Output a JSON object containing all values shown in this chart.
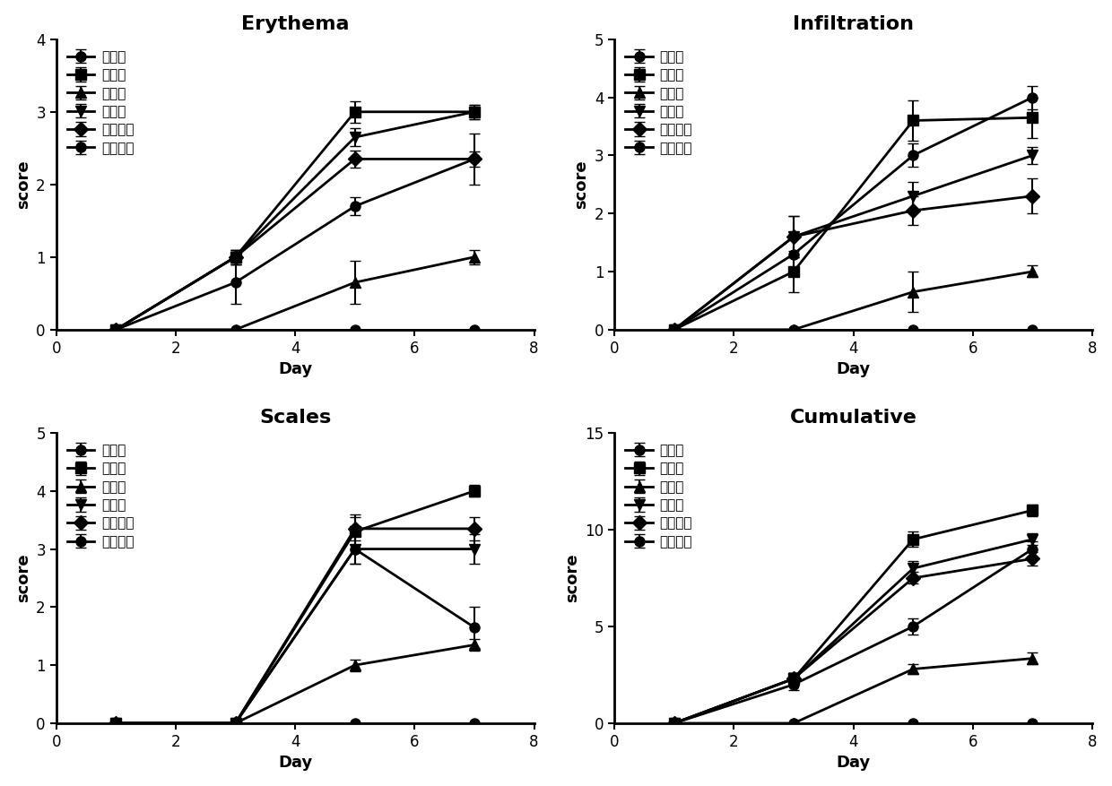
{
  "days": [
    1,
    3,
    5,
    7
  ],
  "groups": [
    "第一组",
    "第二组",
    "第八组",
    "第十组",
    "第十一组",
    "第十二组"
  ],
  "marker_codes": [
    "o",
    "s",
    "^",
    "v",
    "D",
    "o"
  ],
  "erythema": {
    "title": "Erythema",
    "ylabel": "score",
    "xlabel": "Day",
    "ylim": [
      0,
      4
    ],
    "yticks": [
      0,
      1,
      2,
      3,
      4
    ],
    "xlim": [
      0,
      8
    ],
    "xticks": [
      0,
      2,
      4,
      6,
      8
    ],
    "series": [
      {
        "y": [
          0,
          0,
          0,
          0
        ],
        "yerr": [
          0,
          0,
          0,
          0
        ]
      },
      {
        "y": [
          0,
          1.0,
          3.0,
          3.0
        ],
        "yerr": [
          0,
          0.1,
          0.15,
          0.1
        ]
      },
      {
        "y": [
          0,
          0.0,
          0.65,
          1.0
        ],
        "yerr": [
          0,
          0.0,
          0.3,
          0.1
        ]
      },
      {
        "y": [
          0,
          1.0,
          2.65,
          3.0
        ],
        "yerr": [
          0,
          0.1,
          0.12,
          0.1
        ]
      },
      {
        "y": [
          0,
          1.0,
          2.35,
          2.35
        ],
        "yerr": [
          0,
          0.1,
          0.12,
          0.35
        ]
      },
      {
        "y": [
          0,
          0.65,
          1.7,
          2.35
        ],
        "yerr": [
          0,
          0.3,
          0.12,
          0.1
        ]
      }
    ]
  },
  "infiltration": {
    "title": "Infiltration",
    "ylabel": "score",
    "xlabel": "Day",
    "ylim": [
      0,
      5
    ],
    "yticks": [
      0,
      1,
      2,
      3,
      4,
      5
    ],
    "xlim": [
      0,
      8
    ],
    "xticks": [
      0,
      2,
      4,
      6,
      8
    ],
    "series": [
      {
        "y": [
          0,
          0,
          0,
          0
        ],
        "yerr": [
          0,
          0,
          0,
          0
        ]
      },
      {
        "y": [
          0,
          1.0,
          3.6,
          3.65
        ],
        "yerr": [
          0,
          0.35,
          0.35,
          0.35
        ]
      },
      {
        "y": [
          0,
          0.0,
          0.65,
          1.0
        ],
        "yerr": [
          0,
          0.0,
          0.35,
          0.1
        ]
      },
      {
        "y": [
          0,
          1.6,
          2.3,
          3.0
        ],
        "yerr": [
          0,
          0.35,
          0.25,
          0.15
        ]
      },
      {
        "y": [
          0,
          1.6,
          2.05,
          2.3
        ],
        "yerr": [
          0,
          0.35,
          0.25,
          0.3
        ]
      },
      {
        "y": [
          0,
          1.3,
          3.0,
          4.0
        ],
        "yerr": [
          0,
          0.35,
          0.2,
          0.2
        ]
      }
    ]
  },
  "scales": {
    "title": "Scales",
    "ylabel": "score",
    "xlabel": "Day",
    "ylim": [
      0,
      5
    ],
    "yticks": [
      0,
      1,
      2,
      3,
      4,
      5
    ],
    "xlim": [
      0,
      8
    ],
    "xticks": [
      0,
      2,
      4,
      6,
      8
    ],
    "series": [
      {
        "y": [
          0,
          0,
          0,
          0
        ],
        "yerr": [
          0,
          0,
          0,
          0
        ]
      },
      {
        "y": [
          0,
          0.0,
          3.3,
          4.0
        ],
        "yerr": [
          0,
          0.0,
          0.3,
          0.1
        ]
      },
      {
        "y": [
          0,
          0.0,
          1.0,
          1.35
        ],
        "yerr": [
          0,
          0.0,
          0.1,
          0.1
        ]
      },
      {
        "y": [
          0,
          0.0,
          3.0,
          3.0
        ],
        "yerr": [
          0,
          0.0,
          0.25,
          0.25
        ]
      },
      {
        "y": [
          0,
          0.0,
          3.35,
          3.35
        ],
        "yerr": [
          0,
          0.0,
          0.2,
          0.2
        ]
      },
      {
        "y": [
          0,
          0.0,
          3.0,
          1.65
        ],
        "yerr": [
          0,
          0.0,
          0.25,
          0.35
        ]
      }
    ]
  },
  "cumulative": {
    "title": "Cumulative",
    "ylabel": "score",
    "xlabel": "Day",
    "ylim": [
      0,
      15
    ],
    "yticks": [
      0,
      5,
      10,
      15
    ],
    "xlim": [
      0,
      8
    ],
    "xticks": [
      0,
      2,
      4,
      6,
      8
    ],
    "series": [
      {
        "y": [
          0,
          0,
          0,
          0
        ],
        "yerr": [
          0,
          0,
          0,
          0
        ]
      },
      {
        "y": [
          0,
          2.3,
          9.5,
          11.0
        ],
        "yerr": [
          0,
          0.3,
          0.4,
          0.3
        ]
      },
      {
        "y": [
          0,
          0.0,
          2.8,
          3.35
        ],
        "yerr": [
          0,
          0.0,
          0.25,
          0.3
        ]
      },
      {
        "y": [
          0,
          2.3,
          8.0,
          9.5
        ],
        "yerr": [
          0,
          0.3,
          0.4,
          0.3
        ]
      },
      {
        "y": [
          0,
          2.3,
          7.5,
          8.5
        ],
        "yerr": [
          0,
          0.3,
          0.3,
          0.35
        ]
      },
      {
        "y": [
          0,
          2.0,
          5.0,
          9.0
        ],
        "yerr": [
          0,
          0.3,
          0.4,
          0.4
        ]
      }
    ]
  },
  "line_color": "#000000",
  "bg_color": "#ffffff",
  "title_fontsize": 16,
  "label_fontsize": 13,
  "tick_fontsize": 12,
  "legend_fontsize": 11,
  "linewidth": 2.0,
  "markersize": 8,
  "capsize": 4,
  "elinewidth": 1.5
}
